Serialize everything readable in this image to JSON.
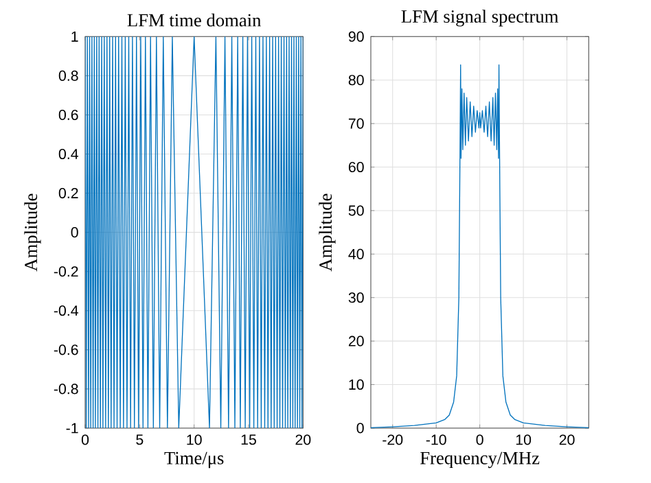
{
  "chart_data": [
    {
      "type": "line",
      "title": "LFM time domain",
      "xlabel": "Time/μs",
      "ylabel": "Amplitude",
      "color": "#0072bd",
      "grid": true,
      "xlim": [
        0,
        20
      ],
      "ylim": [
        -1,
        1
      ],
      "xticks": [
        0,
        5,
        10,
        15,
        20
      ],
      "yticks": [
        -1,
        -0.8,
        -0.6,
        -0.4,
        -0.2,
        0,
        0.2,
        0.4,
        0.6,
        0.8,
        1
      ],
      "x": [
        0,
        0.1,
        0.2,
        0.31,
        0.41,
        0.51,
        0.62,
        0.73,
        0.84,
        0.94,
        1.06,
        1.17,
        1.28,
        1.4,
        1.52,
        1.63,
        1.75,
        1.88,
        2.0,
        2.13,
        2.25,
        2.38,
        2.52,
        2.65,
        2.79,
        2.93,
        3.07,
        3.22,
        3.37,
        3.52,
        3.68,
        3.84,
        4.0,
        4.17,
        4.34,
        4.52,
        4.71,
        4.9,
        5.1,
        5.31,
        5.53,
        5.76,
        6.0,
        6.26,
        6.54,
        6.84,
        7.17,
        7.55,
        8.0,
        8.59,
        10,
        11.41,
        12.0,
        12.45,
        12.83,
        13.16,
        13.46,
        13.74,
        14.0,
        14.24,
        14.47,
        14.69,
        14.9,
        15.1,
        15.29,
        15.48,
        15.66,
        15.83,
        16.0,
        16.16,
        16.32,
        16.48,
        16.63,
        16.78,
        16.93,
        17.07,
        17.21,
        17.35,
        17.48,
        17.62,
        17.75,
        17.87,
        18.0,
        18.12,
        18.25,
        18.37,
        18.49,
        18.6,
        18.72,
        18.83,
        18.94,
        19.06,
        19.16,
        19.27,
        19.38,
        19.49,
        19.59,
        19.7,
        19.8,
        19.9,
        20
      ],
      "values": [
        1,
        -1,
        1,
        -1,
        1,
        -1,
        1,
        -1,
        1,
        -1,
        1,
        -1,
        1,
        -1,
        1,
        -1,
        1,
        -1,
        1,
        -1,
        1,
        -1,
        1,
        -1,
        1,
        -1,
        1,
        -1,
        1,
        -1,
        1,
        -1,
        1,
        -1,
        1,
        -1,
        1,
        -1,
        1,
        -1,
        1,
        -1,
        1,
        -1,
        1,
        -1,
        1,
        -1,
        1,
        -1,
        1,
        -1,
        1,
        -1,
        1,
        -1,
        1,
        -1,
        1,
        -1,
        1,
        -1,
        1,
        -1,
        1,
        -1,
        1,
        -1,
        1,
        -1,
        1,
        -1,
        1,
        -1,
        1,
        -1,
        1,
        -1,
        1,
        -1,
        1,
        -1,
        1,
        -1,
        1,
        -1,
        1,
        -1,
        1,
        -1,
        1,
        -1,
        1,
        -1,
        1,
        -1,
        1,
        -1,
        1,
        -1,
        1
      ]
    },
    {
      "type": "line",
      "title": "LFM signal spectrum",
      "xlabel": "Frequency/MHz",
      "ylabel": "Amplitude",
      "color": "#0072bd",
      "grid": true,
      "xlim": [
        -25,
        25
      ],
      "ylim": [
        0,
        90
      ],
      "xticks": [
        -20,
        -10,
        0,
        10,
        20
      ],
      "yticks": [
        0,
        10,
        20,
        30,
        40,
        50,
        60,
        70,
        80,
        90
      ],
      "x": [
        -25,
        -20,
        -15,
        -10,
        -8,
        -7,
        -6,
        -5.3,
        -4.8,
        -4.6,
        -4.4,
        -4.3,
        -4.1,
        -3.9,
        -3.6,
        -3.3,
        -3.0,
        -2.6,
        -2.2,
        -1.8,
        -1.4,
        -1.0,
        -0.6,
        -0.2,
        0,
        0.2,
        0.6,
        1.0,
        1.4,
        1.8,
        2.2,
        2.6,
        3.0,
        3.3,
        3.6,
        3.9,
        4.1,
        4.3,
        4.4,
        4.6,
        4.8,
        5.3,
        6,
        7,
        8,
        10,
        15,
        20,
        25
      ],
      "values": [
        0.1,
        0.3,
        0.6,
        1.2,
        2,
        3,
        6,
        12,
        30,
        55,
        83.5,
        62,
        78,
        64,
        77,
        65,
        76,
        66,
        75,
        67,
        74,
        68,
        73,
        69,
        72.5,
        69,
        73,
        68,
        74,
        67,
        75,
        66,
        76,
        65,
        77,
        64,
        78,
        62,
        83.5,
        55,
        30,
        12,
        6,
        3,
        2,
        1.2,
        0.6,
        0.3,
        0.1
      ]
    }
  ]
}
